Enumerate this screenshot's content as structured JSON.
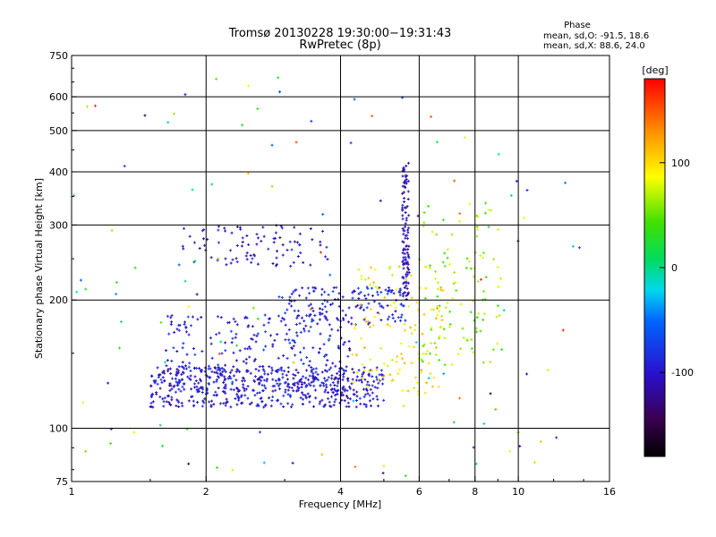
{
  "chart_data": {
    "type": "scatter",
    "title": "Tromsø 20130228 19:30:00−19:31:43",
    "subtitle": "RwPretec (8p)",
    "xlabel": "Frequency [MHz]",
    "ylabel": "Stationary phase Virtual Height [km]",
    "x_scale": "log",
    "y_scale": "log",
    "xlim": [
      1,
      16
    ],
    "ylim": [
      75,
      750
    ],
    "x_ticks": [
      {
        "value": 1,
        "label": "1"
      },
      {
        "value": 2,
        "label": "2"
      },
      {
        "value": 4,
        "label": "4"
      },
      {
        "value": 6,
        "label": "6"
      },
      {
        "value": 8,
        "label": "8"
      },
      {
        "value": 10,
        "label": "10"
      },
      {
        "value": 16,
        "label": "16"
      }
    ],
    "x_grid": [
      2,
      4,
      6,
      8,
      10
    ],
    "y_ticks": [
      {
        "value": 75,
        "label": "75"
      },
      {
        "value": 100,
        "label": "100"
      },
      {
        "value": 200,
        "label": "200"
      },
      {
        "value": 300,
        "label": "300"
      },
      {
        "value": 400,
        "label": "400"
      },
      {
        "value": 500,
        "label": "500"
      },
      {
        "value": 600,
        "label": "600"
      },
      {
        "value": 750,
        "label": "750"
      }
    ],
    "y_grid": [
      100,
      200,
      300,
      400,
      500,
      600
    ],
    "grid": true,
    "stats": {
      "heading": "Phase",
      "line_o": "mean, sd,O:  -91.5, 18.6",
      "line_x": "mean, sd,X:  88.6, 24.0"
    },
    "colorbar": {
      "label": "[deg]",
      "range": [
        -180,
        180
      ],
      "ticks": [
        {
          "value": 100,
          "label": "100"
        },
        {
          "value": 0,
          "label": "0"
        },
        {
          "value": -100,
          "label": "-100"
        }
      ]
    },
    "point_groups": [
      {
        "trace": "low O trace",
        "x_range": [
          1.5,
          5.0
        ],
        "y_range": [
          112,
          140
        ],
        "phase_deg": -100,
        "approx_count": 520
      },
      {
        "trace": "low trace spread",
        "x_range": [
          1.6,
          4.2
        ],
        "y_range": [
          125,
          185
        ],
        "phase_deg": -95,
        "approx_count": 260
      },
      {
        "trace": "mid trace",
        "x_range": [
          2.9,
          5.6
        ],
        "y_range": [
          175,
          215
        ],
        "phase_deg": -90,
        "approx_count": 140
      },
      {
        "trace": "F layer trace",
        "x_range": [
          1.75,
          3.8
        ],
        "y_range": [
          240,
          300
        ],
        "phase_deg": -105,
        "approx_count": 90
      },
      {
        "trace": "vertical cusp",
        "x_range": [
          5.5,
          5.7
        ],
        "y_range": [
          200,
          420
        ],
        "phase_deg": -110,
        "approx_count": 110
      },
      {
        "trace": "X trace",
        "x_range": [
          4.2,
          6.8
        ],
        "y_range": [
          120,
          240
        ],
        "phase_deg": 95,
        "approx_count": 120
      },
      {
        "trace": "high frequency band",
        "x_range": [
          6.0,
          9.2
        ],
        "y_range": [
          140,
          340
        ],
        "phase_deg": 60,
        "approx_count": 110
      },
      {
        "trace": "scattered",
        "x_range": [
          1.0,
          14.0
        ],
        "y_range": [
          75,
          700
        ],
        "phase_deg": 0,
        "approx_count": 120
      }
    ]
  }
}
